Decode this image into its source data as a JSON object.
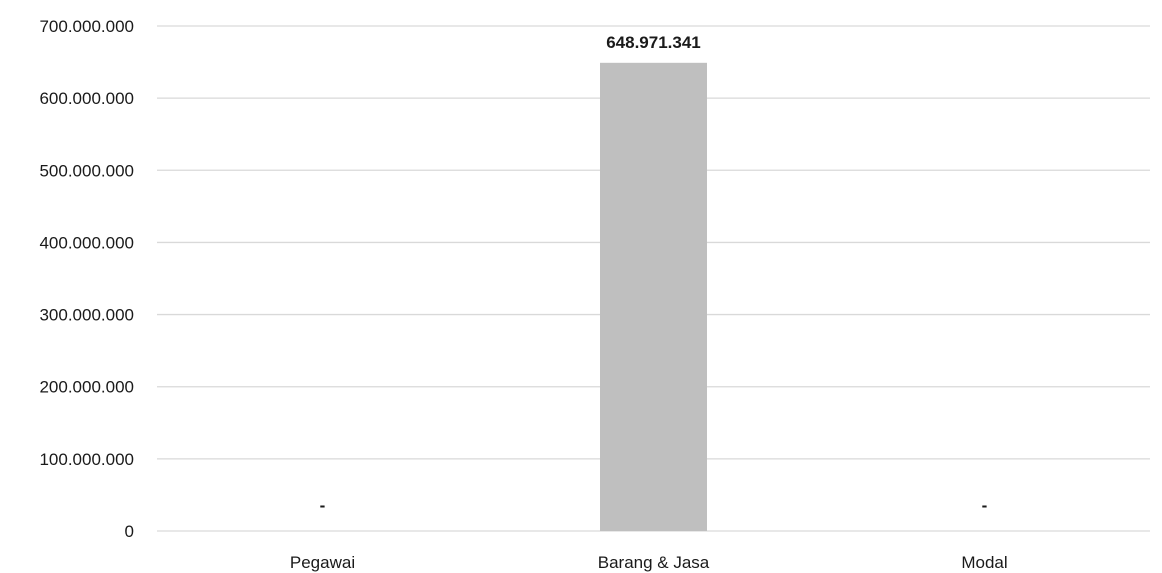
{
  "chart_data": {
    "type": "bar",
    "title": "",
    "xlabel": "",
    "ylabel": "",
    "categories": [
      "Pegawai",
      "Barang & Jasa",
      "Modal"
    ],
    "values": [
      0,
      648971341,
      0
    ],
    "data_labels": [
      "-",
      "648.971.341",
      "-"
    ],
    "ylim": [
      0,
      700000000
    ],
    "y_ticks": [
      0,
      100000000,
      200000000,
      300000000,
      400000000,
      500000000,
      600000000,
      700000000
    ],
    "y_tick_labels": [
      "0",
      "100.000.000",
      "200.000.000",
      "300.000.000",
      "400.000.000",
      "500.000.000",
      "600.000.000",
      "700.000.000"
    ],
    "grid": true,
    "legend": "none",
    "colors": {
      "bar": "#bfbfbf",
      "grid": "#d9d9d9",
      "text": "#1a1a1a"
    }
  }
}
